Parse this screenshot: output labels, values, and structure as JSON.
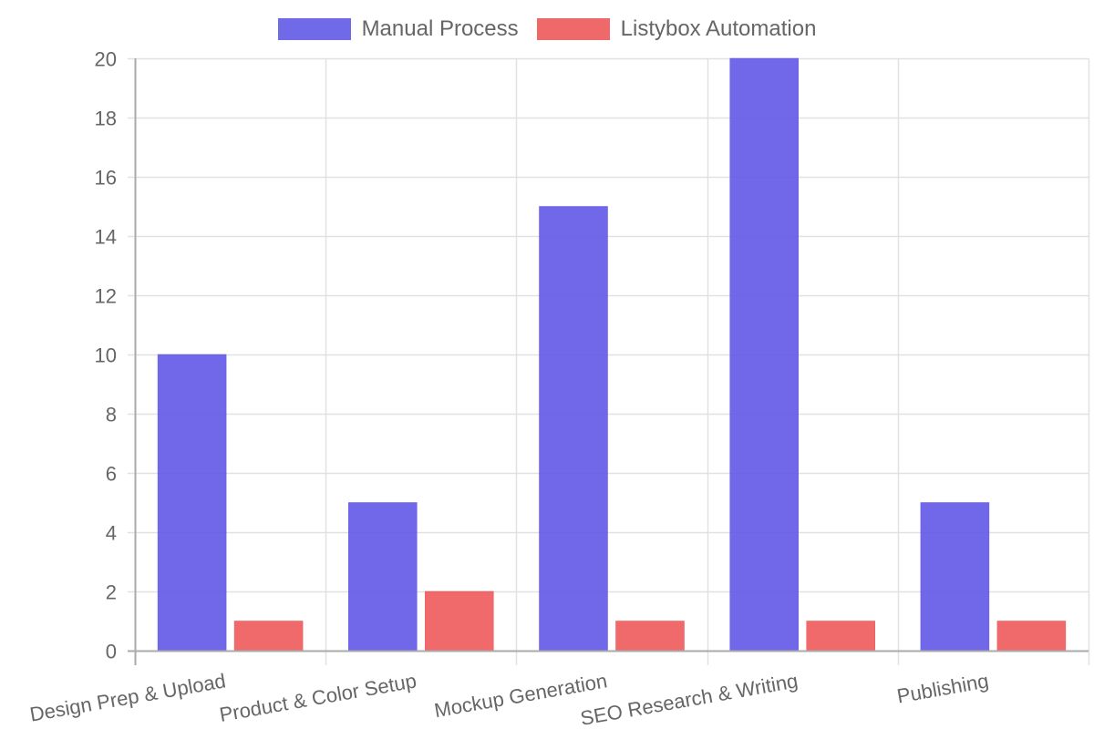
{
  "chart_data": {
    "type": "bar",
    "title": "",
    "xlabel": "",
    "ylabel": "",
    "categories": [
      "Design Prep & Upload",
      "Product & Color Setup",
      "Mockup Generation",
      "SEO Research & Writing",
      "Publishing"
    ],
    "series": [
      {
        "name": "Manual Process",
        "values": [
          10,
          5,
          15,
          20,
          5
        ],
        "color": "#7069E8"
      },
      {
        "name": "Listybox Automation",
        "values": [
          1,
          2,
          1,
          1,
          1
        ],
        "color": "#F0696A"
      }
    ],
    "ylim": [
      0,
      20
    ],
    "yticks": [
      0,
      2,
      4,
      6,
      8,
      10,
      12,
      14,
      16,
      18,
      20
    ],
    "grid": true,
    "legend_position": "top"
  },
  "legend": {
    "items": [
      {
        "label": "Manual Process",
        "color": "#7069E8"
      },
      {
        "label": "Listybox Automation",
        "color": "#F0696A"
      }
    ]
  }
}
